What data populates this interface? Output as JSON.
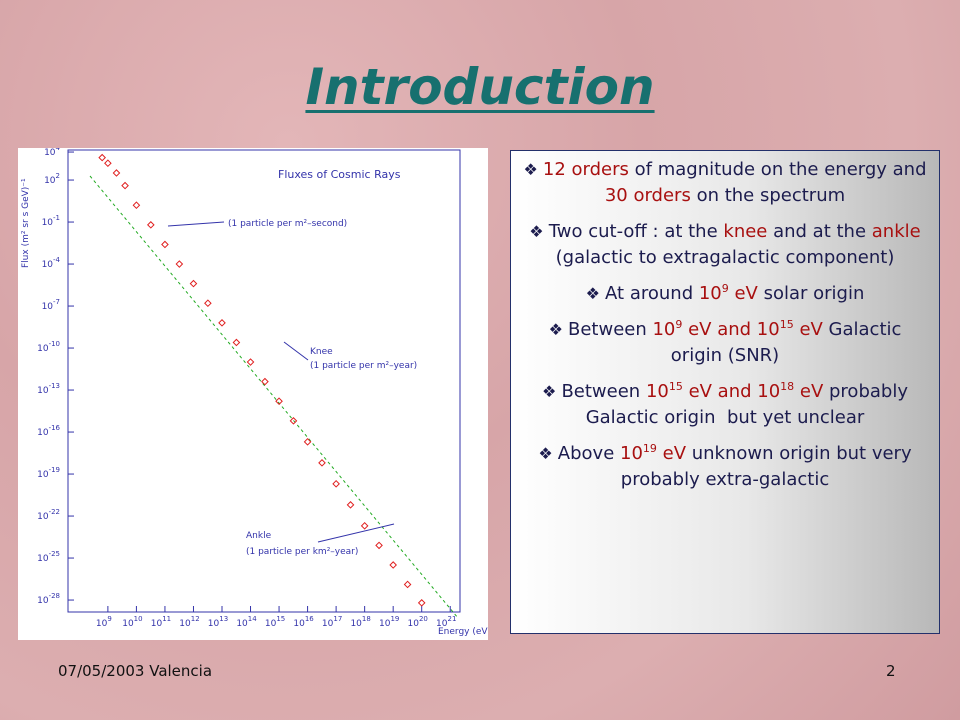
{
  "title": "Introduction",
  "figure": {
    "type": "scatter",
    "title": "Fluxes of Cosmic Rays",
    "y_label": "Flux (m² sr s GeV)⁻¹",
    "x_label": "Energy (eV)",
    "xscale": "log",
    "yscale": "log",
    "xlim": [
      40000000.0,
      2.2e+21
    ],
    "ylim": [
      1.4e-29,
      14000.0
    ],
    "xticks": [
      {
        "value": 1000000000.0,
        "label": "10",
        "exponent": "9"
      },
      {
        "value": 10000000000.0,
        "label": "10",
        "exponent": "10"
      },
      {
        "value": 100000000000.0,
        "label": "10",
        "exponent": "11"
      },
      {
        "value": 1000000000000.0,
        "label": "10",
        "exponent": "12"
      },
      {
        "value": 10000000000000.0,
        "label": "10",
        "exponent": "13"
      },
      {
        "value": 100000000000000.0,
        "label": "10",
        "exponent": "14"
      },
      {
        "value": 1000000000000000.0,
        "label": "10",
        "exponent": "15"
      },
      {
        "value": 1e+16,
        "label": "10",
        "exponent": "16"
      },
      {
        "value": 1e+17,
        "label": "10",
        "exponent": "17"
      },
      {
        "value": 1e+18,
        "label": "10",
        "exponent": "18"
      },
      {
        "value": 1e+19,
        "label": "10",
        "exponent": "19"
      },
      {
        "value": 1e+20,
        "label": "10",
        "exponent": "20"
      },
      {
        "value": 1e+21,
        "label": "10",
        "exponent": "21"
      }
    ],
    "yticks": [
      {
        "value": 10000.0,
        "label": "10",
        "exponent": "4"
      },
      {
        "value": 100.0,
        "label": "10",
        "exponent": "2"
      },
      {
        "value": 0.1,
        "label": "10",
        "exponent": "-1"
      },
      {
        "value": 0.0001,
        "label": "10",
        "exponent": "-4"
      },
      {
        "value": 1e-07,
        "label": "10",
        "exponent": "-7"
      },
      {
        "value": 1e-10,
        "label": "10",
        "exponent": "-10"
      },
      {
        "value": 1e-13,
        "label": "10",
        "exponent": "-13"
      },
      {
        "value": 1e-16,
        "label": "10",
        "exponent": "-16"
      },
      {
        "value": 1e-19,
        "label": "10",
        "exponent": "-19"
      },
      {
        "value": 1e-22,
        "label": "10",
        "exponent": "-22"
      },
      {
        "value": 1e-25,
        "label": "10",
        "exponent": "-25"
      },
      {
        "value": 1e-28,
        "label": "10",
        "exponent": "-28"
      }
    ],
    "series": [
      {
        "color": "#e02020",
        "x": [
          630000000.0,
          1000000000.0,
          2000000000.0,
          4000000000.0,
          10000000000.0,
          32000000000.0,
          100000000000.0,
          320000000000.0,
          1000000000000.0,
          3200000000000.0,
          10000000000000.0,
          32000000000000.0,
          100000000000000.0,
          320000000000000.0,
          1000000000000000.0,
          3200000000000000.0,
          1e+16,
          3.2e+16,
          1e+17,
          3.2e+17,
          1e+18,
          3.2e+18,
          1e+19,
          3.2e+19,
          1e+20
        ],
        "values": [
          4000.0,
          1600.0,
          320.0,
          40.0,
          1.6,
          0.063,
          0.0025,
          0.0001,
          4e-06,
          1.6e-07,
          6.3e-09,
          2.5e-10,
          1e-11,
          4e-13,
          1.6e-14,
          6.3e-16,
          2e-17,
          6.3e-19,
          2e-20,
          6.3e-22,
          2e-23,
          8e-25,
          3.2e-26,
          1.3e-27,
          6.3e-29
        ]
      }
    ],
    "annotations": [
      "(1 particle per m²–second)",
      "Knee",
      "(1 particle per m²–year)",
      "Ankle",
      "(1 particle per km²–year)"
    ]
  },
  "bullets": [
    [
      {
        "t": "12 orders",
        "hl": true
      },
      {
        "t": " of magnitude on the energy and "
      },
      {
        "t": "30 orders",
        "hl": true
      },
      {
        "t": " on the spectrum"
      }
    ],
    [
      {
        "t": "Two cut-off : at the "
      },
      {
        "t": "knee",
        "hl": true
      },
      {
        "t": " and at the "
      },
      {
        "t": "ankle",
        "hl": true
      },
      {
        "t": " (galactic to extragalactic component)"
      }
    ],
    [
      {
        "t": "At around "
      },
      {
        "t": "10",
        "hl": true
      },
      {
        "sup": "9",
        "hl": true
      },
      {
        "t": " eV",
        "hl": true
      },
      {
        "t": " solar origin"
      }
    ],
    [
      {
        "t": "Between "
      },
      {
        "t": "10",
        "hl": true
      },
      {
        "sup": "9",
        "hl": true
      },
      {
        "t": " eV and 10",
        "hl": true
      },
      {
        "sup": "15",
        "hl": true
      },
      {
        "t": " eV",
        "hl": true
      },
      {
        "t": " Galactic origin (SNR)"
      }
    ],
    [
      {
        "t": "Between "
      },
      {
        "t": "10",
        "hl": true
      },
      {
        "sup": "15",
        "hl": true
      },
      {
        "t": " eV and 10",
        "hl": true
      },
      {
        "sup": "18",
        "hl": true
      },
      {
        "t": " eV",
        "hl": true
      },
      {
        "t": " probably Galactic origin  but yet unclear"
      }
    ],
    [
      {
        "t": "Above "
      },
      {
        "t": "10",
        "hl": true
      },
      {
        "sup": "19",
        "hl": true
      },
      {
        "t": " eV",
        "hl": true
      },
      {
        "t": " unknown origin but very probably extra-galactic"
      }
    ]
  ],
  "footer": {
    "left": "07/05/2003 Valencia",
    "page": "2"
  }
}
